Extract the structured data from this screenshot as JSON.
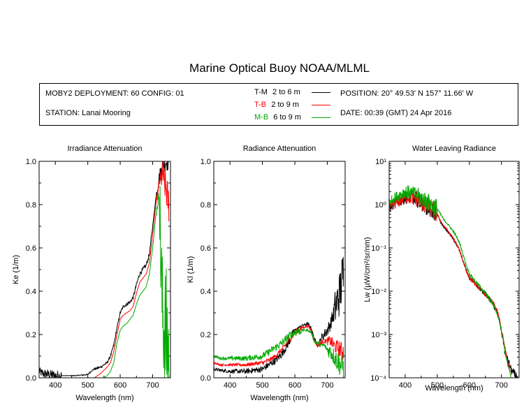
{
  "title": "Marine Optical Buoy NOAA/MLML",
  "info": {
    "deployment": "MOBY2 DEPLOYMENT: 60 CONFIG: 01",
    "station": "STATION: Lanai Mooring",
    "position": "POSITION: 20° 49.53' N   157° 11.66' W",
    "date": "DATE: 00:39 (GMT) 24 Apr 2016"
  },
  "legend": [
    {
      "code": "T-M",
      "range": "2 to 6  m",
      "color": "#000000"
    },
    {
      "code": "T-B",
      "range": "2 to 9  m",
      "color": "#ff0000"
    },
    {
      "code": "M-B",
      "range": "6 to 9  m",
      "color": "#00aa00"
    }
  ],
  "chart_data": [
    {
      "type": "line",
      "title": "Irradiance Attenuation",
      "xlabel": "Wavelength (nm)",
      "ylabel": "Ke  (1/m)",
      "xlim": [
        350,
        755
      ],
      "ylim": [
        0,
        1.0
      ],
      "xticks": [
        "400",
        "500",
        "600",
        "700"
      ],
      "yticks": [
        "0.0",
        "0.2",
        "0.4",
        "0.6",
        "0.8",
        "1.0"
      ],
      "series": [
        {
          "name": "T-M",
          "color": "#000000",
          "noise": [
            [
              350,
              0.02,
              0.01
            ],
            [
              420,
              0,
              0.004
            ],
            [
              700,
              0,
              0
            ],
            [
              712,
              0.03,
              0.05
            ]
          ],
          "x": [
            350,
            360,
            380,
            400,
            420,
            440,
            460,
            480,
            500,
            510,
            520,
            540,
            560,
            570,
            580,
            590,
            600,
            610,
            620,
            630,
            640,
            650,
            660,
            670,
            680,
            690,
            700,
            710,
            720,
            730,
            740,
            750
          ],
          "y": [
            0.03,
            0.02,
            0.015,
            0.01,
            0.01,
            0.01,
            0.01,
            0.012,
            0.015,
            0.03,
            0.04,
            0.05,
            0.07,
            0.1,
            0.15,
            0.23,
            0.3,
            0.33,
            0.34,
            0.35,
            0.37,
            0.43,
            0.48,
            0.5,
            0.52,
            0.57,
            0.7,
            0.83,
            0.92,
            0.98,
            1.0,
            1.0
          ]
        },
        {
          "name": "T-B",
          "color": "#ff0000",
          "noise": [
            [
              560,
              0,
              0
            ],
            [
              712,
              0.02,
              0.06
            ],
            [
              725,
              0.06,
              0.12
            ]
          ],
          "x": [
            520,
            540,
            560,
            570,
            580,
            590,
            600,
            610,
            620,
            630,
            640,
            650,
            660,
            670,
            680,
            690,
            700,
            710,
            720,
            730,
            740,
            750
          ],
          "y": [
            0.0,
            0.02,
            0.05,
            0.07,
            0.12,
            0.2,
            0.27,
            0.29,
            0.3,
            0.31,
            0.33,
            0.39,
            0.44,
            0.46,
            0.48,
            0.53,
            0.66,
            0.8,
            0.9,
            0.94,
            0.88,
            0.8
          ]
        },
        {
          "name": "M-B",
          "color": "#00aa00",
          "noise": [
            [
              570,
              0,
              0
            ],
            [
              712,
              0.02,
              0.04
            ],
            [
              722,
              0.25,
              0.45
            ]
          ],
          "x": [
            550,
            560,
            570,
            580,
            590,
            600,
            610,
            620,
            630,
            640,
            650,
            660,
            670,
            680,
            690,
            700,
            710,
            720,
            730,
            740,
            750
          ],
          "y": [
            0.0,
            0.01,
            0.03,
            0.07,
            0.16,
            0.22,
            0.24,
            0.25,
            0.27,
            0.29,
            0.34,
            0.38,
            0.4,
            0.42,
            0.48,
            0.6,
            0.75,
            0.85,
            0.3,
            0.2,
            0.1
          ]
        }
      ]
    },
    {
      "type": "line",
      "title": "Radiance Attenuation",
      "xlabel": "Wavelength (nm)",
      "ylabel": "Kl  (1/m)",
      "xlim": [
        350,
        755
      ],
      "ylim": [
        0,
        1.0
      ],
      "xticks": [
        "400",
        "500",
        "600",
        "700"
      ],
      "yticks": [
        "0.0",
        "0.2",
        "0.4",
        "0.6",
        "0.8",
        "1.0"
      ],
      "series": [
        {
          "name": "T-M",
          "color": "#000000",
          "noise": [
            [
              350,
              0.006,
              0.006
            ],
            [
              600,
              0.004,
              0.006
            ],
            [
              680,
              0.02,
              0.04
            ],
            [
              720,
              0.08,
              0.15
            ]
          ],
          "x": [
            350,
            370,
            400,
            450,
            500,
            520,
            540,
            560,
            580,
            600,
            620,
            640,
            650,
            660,
            670,
            680,
            690,
            700,
            710,
            720,
            730,
            740,
            750
          ],
          "y": [
            0.04,
            0.035,
            0.03,
            0.03,
            0.04,
            0.06,
            0.08,
            0.11,
            0.16,
            0.22,
            0.24,
            0.25,
            0.23,
            0.18,
            0.15,
            0.18,
            0.2,
            0.22,
            0.25,
            0.3,
            0.35,
            0.4,
            0.5
          ]
        },
        {
          "name": "T-B",
          "color": "#ff0000",
          "noise": [
            [
              350,
              0.004,
              0.004
            ],
            [
              620,
              0.005,
              0.008
            ],
            [
              700,
              0.02,
              0.05
            ]
          ],
          "x": [
            350,
            370,
            400,
            450,
            500,
            520,
            540,
            560,
            580,
            600,
            620,
            640,
            650,
            660,
            670,
            680,
            690,
            700,
            710,
            720,
            730,
            740,
            750
          ],
          "y": [
            0.07,
            0.06,
            0.06,
            0.06,
            0.07,
            0.08,
            0.1,
            0.13,
            0.17,
            0.21,
            0.23,
            0.24,
            0.22,
            0.17,
            0.15,
            0.16,
            0.17,
            0.17,
            0.17,
            0.15,
            0.14,
            0.13,
            0.12
          ]
        },
        {
          "name": "M-B",
          "color": "#00aa00",
          "noise": [
            [
              350,
              0.006,
              0.006
            ],
            [
              620,
              0.005,
              0.008
            ],
            [
              700,
              0.03,
              0.06
            ]
          ],
          "x": [
            350,
            370,
            400,
            450,
            500,
            520,
            540,
            560,
            580,
            600,
            620,
            640,
            650,
            660,
            670,
            680,
            690,
            700,
            710,
            720,
            730,
            740,
            750
          ],
          "y": [
            0.1,
            0.09,
            0.09,
            0.09,
            0.1,
            0.12,
            0.14,
            0.16,
            0.19,
            0.21,
            0.22,
            0.22,
            0.21,
            0.17,
            0.16,
            0.15,
            0.15,
            0.13,
            0.12,
            0.1,
            0.08,
            0.06,
            0.05
          ]
        }
      ]
    },
    {
      "type": "line",
      "title": "Water Leaving Radiance",
      "xlabel": "Wavelength (nm)",
      "ylabel": "Lw  (µW/cm²/sr/nm)",
      "xlim": [
        350,
        755
      ],
      "ylim": [
        0.0001,
        10
      ],
      "yscale": "log",
      "xticks": [
        "400",
        "500",
        "600",
        "700"
      ],
      "yticks": [
        "10⁻⁴",
        "10⁻³",
        "10⁻²",
        "10⁻¹",
        "10⁰",
        "10¹"
      ],
      "series": [
        {
          "name": "T-M",
          "color": "#000000",
          "noise": [
            [
              350,
              0.12,
              0.08
            ],
            [
              500,
              0.02,
              0.02
            ],
            [
              700,
              0.06,
              0.12
            ]
          ],
          "x": [
            350,
            360,
            380,
            400,
            420,
            440,
            460,
            480,
            500,
            510,
            520,
            540,
            560,
            580,
            590,
            600,
            620,
            640,
            660,
            680,
            700,
            710,
            720,
            730,
            740,
            750
          ],
          "y": [
            0.8,
            1.0,
            1.2,
            1.5,
            1.5,
            1.3,
            1.0,
            0.8,
            0.6,
            0.4,
            0.3,
            0.2,
            0.12,
            0.05,
            0.03,
            0.02,
            0.014,
            0.01,
            0.007,
            0.004,
            0.0011,
            0.0004,
            0.00025,
            0.00015,
            0.00012,
            0.0001
          ]
        },
        {
          "name": "T-B",
          "color": "#ff0000",
          "noise": [
            [
              350,
              0.12,
              0.08
            ],
            [
              500,
              0.02,
              0.02
            ],
            [
              700,
              0.05,
              0.1
            ]
          ],
          "x": [
            350,
            360,
            380,
            400,
            420,
            440,
            460,
            480,
            500,
            510,
            520,
            540,
            560,
            580,
            590,
            600,
            620,
            640,
            660,
            680,
            700,
            710,
            720,
            730
          ],
          "y": [
            0.8,
            1.0,
            1.2,
            1.5,
            1.5,
            1.3,
            1.0,
            0.8,
            0.6,
            0.42,
            0.32,
            0.21,
            0.12,
            0.05,
            0.03,
            0.02,
            0.014,
            0.01,
            0.007,
            0.0045,
            0.0012,
            0.0005,
            0.0002,
            0.0001
          ]
        },
        {
          "name": "M-B",
          "color": "#00aa00",
          "noise": [
            [
              350,
              0.12,
              0.08
            ],
            [
              500,
              0.02,
              0.02
            ],
            [
              700,
              0.04,
              0.06
            ]
          ],
          "x": [
            350,
            360,
            380,
            400,
            420,
            440,
            460,
            480,
            500,
            510,
            520,
            540,
            560,
            580,
            590,
            600,
            620,
            640,
            660,
            680,
            700,
            710,
            720,
            730
          ],
          "y": [
            1.0,
            1.3,
            1.6,
            2.0,
            1.8,
            1.6,
            1.3,
            1.0,
            0.8,
            0.6,
            0.45,
            0.3,
            0.18,
            0.07,
            0.04,
            0.025,
            0.016,
            0.011,
            0.007,
            0.004,
            0.0012,
            0.0004,
            0.0002,
            0.0001
          ]
        }
      ]
    }
  ]
}
